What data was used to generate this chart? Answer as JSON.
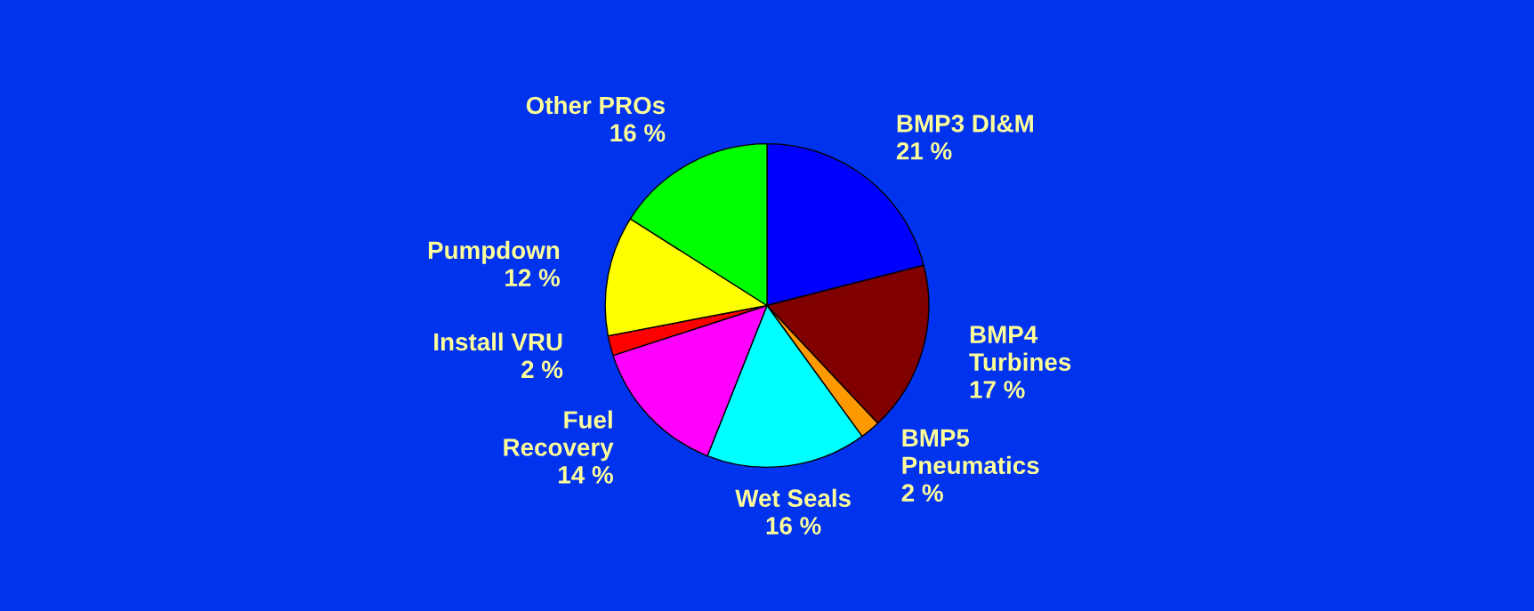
{
  "chart_data": {
    "type": "pie",
    "categories": [
      "BMP3 DI&M",
      "BMP4\nTurbines",
      "BMP5\nPneumatics",
      "Wet Seals",
      "Fuel\nRecovery",
      "Install VRU",
      "Pumpdown",
      "Other PROs"
    ],
    "values": [
      21,
      17,
      2,
      16,
      14,
      2,
      12,
      16
    ],
    "value_labels": [
      "21 %",
      "17 %",
      "2 %",
      "16 %",
      "14 %",
      "2 %",
      "12 %",
      "16 %"
    ],
    "colors": [
      "#0000ff",
      "#800000",
      "#ff9900",
      "#00ffff",
      "#ff00ff",
      "#ff0000",
      "#ffff00",
      "#00ff00"
    ]
  }
}
